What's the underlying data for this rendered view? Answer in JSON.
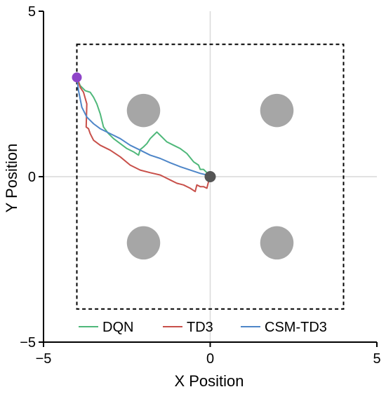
{
  "chart_data": {
    "type": "line",
    "xlabel": "X Position",
    "ylabel": "Y Position",
    "xlim": [
      -5,
      5
    ],
    "ylim": [
      -5,
      5
    ],
    "xticks": [
      -5,
      0,
      5
    ],
    "yticks": [
      -5,
      0,
      5
    ],
    "xtick_labels": [
      "−5",
      "0",
      "5"
    ],
    "ytick_labels": [
      "−5",
      "0",
      "5"
    ],
    "zero_lines": true,
    "boundary": {
      "x": [
        -4,
        4
      ],
      "y": [
        -4,
        4
      ],
      "style": "dashed",
      "color": "#000000"
    },
    "obstacles": [
      {
        "x": -2,
        "y": 2,
        "r": 0.5
      },
      {
        "x": 2,
        "y": 2,
        "r": 0.5
      },
      {
        "x": -2,
        "y": -2,
        "r": 0.5
      },
      {
        "x": 2,
        "y": -2,
        "r": 0.5
      }
    ],
    "obstacle_color": "#a6a6a6",
    "start_point": {
      "x": -4.0,
      "y": 3.0,
      "color": "#8e44c8"
    },
    "goal_point": {
      "x": 0.0,
      "y": 0.0,
      "color": "#555555"
    },
    "legend_position": "bottom-center",
    "series": [
      {
        "name": "DQN",
        "color": "#4fb87a",
        "x": [
          -4.0,
          -3.9,
          -3.75,
          -3.6,
          -3.5,
          -3.4,
          -3.3,
          -3.2,
          -3.05,
          -2.9,
          -2.7,
          -2.5,
          -2.3,
          -2.15,
          -2.1,
          -2.0,
          -1.9,
          -1.8,
          -1.7,
          -1.6,
          -1.5,
          -1.3,
          -1.1,
          -0.9,
          -0.7,
          -0.5,
          -0.35,
          -0.3,
          -0.2,
          -0.1,
          0.0
        ],
        "y": [
          3.0,
          2.75,
          2.6,
          2.55,
          2.4,
          2.2,
          1.9,
          1.5,
          1.3,
          1.15,
          1.0,
          0.85,
          0.75,
          0.65,
          0.82,
          0.9,
          1.0,
          1.15,
          1.25,
          1.35,
          1.25,
          1.05,
          0.95,
          0.85,
          0.7,
          0.45,
          0.35,
          0.22,
          0.22,
          0.12,
          0.0
        ]
      },
      {
        "name": "TD3",
        "color": "#c8504a",
        "x": [
          -4.0,
          -3.9,
          -3.8,
          -3.7,
          -3.72,
          -3.65,
          -3.6,
          -3.5,
          -3.3,
          -3.0,
          -2.7,
          -2.4,
          -2.1,
          -1.8,
          -1.5,
          -1.2,
          -1.0,
          -0.8,
          -0.6,
          -0.45,
          -0.4,
          -0.3,
          -0.2,
          -0.1,
          -0.05,
          0.0
        ],
        "y": [
          3.0,
          2.7,
          2.55,
          2.2,
          1.5,
          1.45,
          1.3,
          1.1,
          0.95,
          0.8,
          0.6,
          0.35,
          0.2,
          0.12,
          0.05,
          -0.1,
          -0.2,
          -0.25,
          -0.35,
          -0.45,
          -0.25,
          -0.3,
          -0.3,
          -0.35,
          -0.15,
          0.0
        ]
      },
      {
        "name": "CSM-TD3",
        "color": "#4e86c8",
        "x": [
          -4.0,
          -3.95,
          -3.85,
          -3.7,
          -3.5,
          -3.3,
          -3.0,
          -2.7,
          -2.4,
          -2.1,
          -1.8,
          -1.5,
          -1.2,
          -0.9,
          -0.6,
          -0.3,
          -0.1,
          0.0
        ],
        "y": [
          3.0,
          2.6,
          2.1,
          1.8,
          1.6,
          1.45,
          1.3,
          1.15,
          0.95,
          0.8,
          0.65,
          0.55,
          0.42,
          0.3,
          0.2,
          0.1,
          0.05,
          0.0
        ]
      }
    ]
  }
}
